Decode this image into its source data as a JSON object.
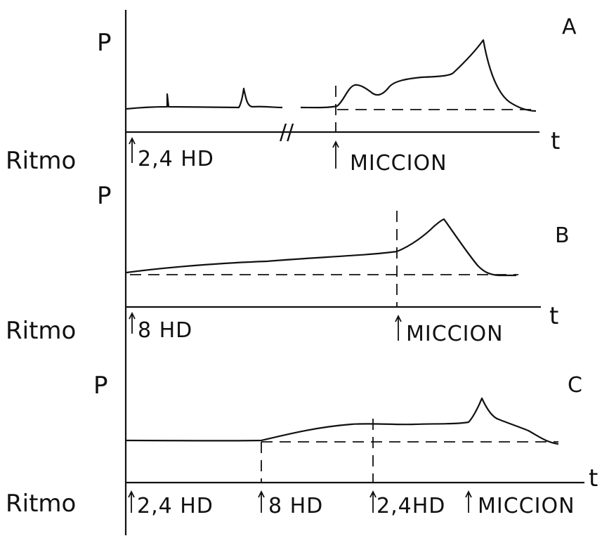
{
  "chart_data": {
    "type": "line",
    "y_axis_label": "P",
    "x_axis_label": "t",
    "row_label": "Ritmo",
    "panels": [
      {
        "id": "A",
        "break_mark": "//",
        "events": [
          {
            "label": "2,4 HD",
            "t": 0
          },
          {
            "label": "MICCION",
            "t": 50
          }
        ],
        "trace": [
          [
            0,
            0
          ],
          [
            5,
            0.5
          ],
          [
            10,
            1
          ],
          [
            20,
            1
          ],
          [
            30,
            1
          ],
          [
            40,
            1
          ],
          [
            50,
            1
          ],
          [
            54,
            6
          ],
          [
            57,
            4
          ],
          [
            60,
            3
          ],
          [
            63,
            5
          ],
          [
            70,
            7
          ],
          [
            80,
            8
          ],
          [
            85,
            12
          ],
          [
            88,
            16
          ],
          [
            91,
            9
          ],
          [
            95,
            3
          ],
          [
            100,
            1
          ]
        ]
      },
      {
        "id": "B",
        "events": [
          {
            "label": "8 HD",
            "t": 0
          },
          {
            "label": "MICCION",
            "t": 65
          }
        ],
        "trace": [
          [
            0,
            0
          ],
          [
            20,
            2
          ],
          [
            40,
            4
          ],
          [
            60,
            5
          ],
          [
            65,
            6
          ],
          [
            72,
            10
          ],
          [
            78,
            15
          ],
          [
            85,
            7
          ],
          [
            90,
            1
          ],
          [
            98,
            0
          ]
        ]
      },
      {
        "id": "C",
        "events": [
          {
            "label": "2,4 HD",
            "t": 0
          },
          {
            "label": "8 HD",
            "t": 29
          },
          {
            "label": "2,4HD",
            "t": 54
          },
          {
            "label": "MICCION",
            "t": 76
          }
        ],
        "trace": [
          [
            0,
            0
          ],
          [
            29,
            0
          ],
          [
            40,
            3
          ],
          [
            50,
            5
          ],
          [
            54,
            5
          ],
          [
            66,
            5
          ],
          [
            76,
            6
          ],
          [
            79,
            12
          ],
          [
            83,
            7
          ],
          [
            90,
            4
          ],
          [
            94,
            1
          ],
          [
            100,
            0
          ]
        ]
      }
    ]
  }
}
